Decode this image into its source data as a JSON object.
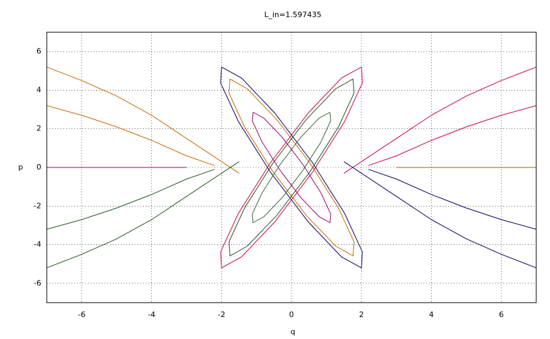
{
  "chart_data": {
    "type": "line",
    "title": "L_in=1.597435",
    "x_label": "q",
    "y_label": "p",
    "xlim": [
      -7,
      7
    ],
    "ylim": [
      -7,
      7
    ],
    "xticks": [
      -6,
      -4,
      -2,
      0,
      2,
      4,
      6
    ],
    "yticks": [
      -6,
      -4,
      -2,
      0,
      2,
      4,
      6
    ],
    "grid": true,
    "series": [
      {
        "color": "#000066",
        "x": [
          -2,
          -1.43,
          -0.48,
          0.6,
          1.52,
          2.03,
          2,
          1.43,
          0.48,
          -0.6,
          -1.52,
          -2.03,
          -2
        ],
        "values": [
          5.2,
          4.63,
          2.82,
          0.25,
          -2.38,
          -4.38,
          -5.2,
          -4.63,
          -2.82,
          -0.25,
          2.38,
          4.38,
          5.2
        ]
      },
      {
        "color": "#cc6600",
        "x": [
          -1.76,
          -1.26,
          -0.42,
          0.53,
          1.34,
          1.79,
          1.76,
          1.26,
          0.42,
          -0.53,
          -1.34,
          -1.79,
          -1.76
        ],
        "values": [
          4.58,
          4.07,
          2.48,
          0.22,
          -2.09,
          -3.85,
          -4.58,
          -4.07,
          -2.48,
          -0.22,
          2.09,
          3.85,
          4.58
        ]
      },
      {
        "color": "#cc0044",
        "x": [
          2,
          1.43,
          0.48,
          -0.6,
          -1.52,
          -2.03,
          -2,
          -1.43,
          -0.48,
          0.6,
          1.52,
          2.03,
          2
        ],
        "values": [
          5.2,
          4.63,
          2.82,
          0.25,
          -2.38,
          -4.38,
          -5.2,
          -4.63,
          -2.82,
          -0.25,
          2.38,
          4.38,
          5.2
        ]
      },
      {
        "color": "#225522",
        "x": [
          1.76,
          1.26,
          0.42,
          -0.53,
          -1.34,
          -1.79,
          -1.76,
          -1.26,
          -0.42,
          0.53,
          1.34,
          1.79,
          1.76
        ],
        "values": [
          4.58,
          4.07,
          2.48,
          0.22,
          -2.09,
          -3.85,
          -4.58,
          -4.07,
          -2.48,
          -0.22,
          2.09,
          3.85,
          4.58
        ]
      },
      {
        "color": "#990066",
        "x": [
          -1.1,
          -0.79,
          -0.26,
          0.33,
          0.84,
          1.12,
          1.1,
          0.79,
          0.26,
          -0.33,
          -0.84,
          -1.12,
          -1.1
        ],
        "values": [
          2.86,
          2.55,
          1.55,
          0.14,
          -1.31,
          -2.41,
          -2.86,
          -2.55,
          -1.55,
          -0.14,
          1.31,
          2.41,
          2.86
        ]
      },
      {
        "color": "#336633",
        "x": [
          1.1,
          0.79,
          0.26,
          -0.33,
          -0.84,
          -1.12,
          -1.1,
          -0.79,
          -0.26,
          0.33,
          0.84,
          1.12,
          1.1
        ],
        "values": [
          2.86,
          2.55,
          1.55,
          0.14,
          -1.31,
          -2.41,
          -2.86,
          -2.55,
          -1.55,
          -0.14,
          1.31,
          2.41,
          2.86
        ]
      },
      {
        "color": "#cc6600",
        "x": [
          -7,
          -6,
          -5,
          -4,
          -3,
          -2,
          -1.5
        ],
        "values": [
          5.2,
          4.5,
          3.7,
          2.7,
          1.5,
          0.3,
          -0.3
        ]
      },
      {
        "color": "#cc6600",
        "x": [
          -7,
          -6,
          -5,
          -4,
          -3,
          -2.2
        ],
        "values": [
          3.2,
          2.7,
          2.1,
          1.4,
          0.6,
          0.1
        ]
      },
      {
        "color": "#cc0044",
        "x": [
          7,
          6,
          5,
          4,
          3,
          2,
          1.5
        ],
        "values": [
          5.2,
          4.5,
          3.7,
          2.7,
          1.5,
          0.3,
          -0.3
        ]
      },
      {
        "color": "#cc0044",
        "x": [
          7,
          6,
          5,
          4,
          3,
          2.2
        ],
        "values": [
          3.2,
          2.7,
          2.1,
          1.4,
          0.6,
          0.1
        ]
      },
      {
        "color": "#225522",
        "x": [
          -7,
          -6,
          -5,
          -4,
          -3,
          -2,
          -1.5
        ],
        "values": [
          -5.2,
          -4.5,
          -3.7,
          -2.7,
          -1.5,
          -0.3,
          0.3
        ]
      },
      {
        "color": "#225522",
        "x": [
          -7,
          -6,
          -5,
          -4,
          -3,
          -2.2
        ],
        "values": [
          -3.2,
          -2.7,
          -2.1,
          -1.4,
          -0.6,
          -0.1
        ]
      },
      {
        "color": "#000066",
        "x": [
          7,
          6,
          5,
          4,
          3,
          2,
          1.5
        ],
        "values": [
          -5.2,
          -4.5,
          -3.7,
          -2.7,
          -1.5,
          -0.3,
          0.3
        ]
      },
      {
        "color": "#000066",
        "x": [
          7,
          6,
          5,
          4,
          3,
          2.2
        ],
        "values": [
          -3.2,
          -2.7,
          -2.1,
          -1.4,
          -0.6,
          -0.1
        ]
      },
      {
        "color": "#990066",
        "x": [
          -7,
          -3
        ],
        "values": [
          0,
          0
        ]
      },
      {
        "color": "#996600",
        "x": [
          3,
          7
        ],
        "values": [
          0,
          0
        ]
      }
    ]
  }
}
